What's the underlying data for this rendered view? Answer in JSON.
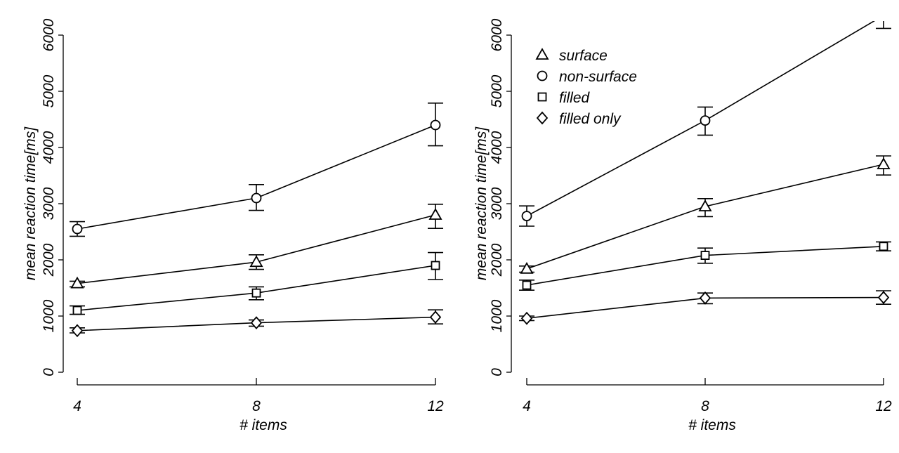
{
  "chart_data": [
    {
      "type": "line",
      "title": "",
      "xlabel": "# items",
      "ylabel": "mean reaction time[ms]",
      "x": [
        4,
        8,
        12
      ],
      "x_ticks": [
        "4",
        "8",
        "12"
      ],
      "y_ticks": [
        "0",
        "1000",
        "2000",
        "3000",
        "4000",
        "5000",
        "6000"
      ],
      "ylim": [
        0,
        6000
      ],
      "legend": "none",
      "series": [
        {
          "name": "non-surface",
          "marker": "circle",
          "values": [
            2550,
            3100,
            4400
          ],
          "err_low": [
            2420,
            2880,
            4030
          ],
          "err_high": [
            2680,
            3340,
            4790
          ]
        },
        {
          "name": "surface",
          "marker": "triangle",
          "values": [
            1580,
            1960,
            2800
          ],
          "err_low": [
            1520,
            1830,
            2560
          ],
          "err_high": [
            1620,
            2090,
            2990
          ]
        },
        {
          "name": "filled",
          "marker": "square",
          "values": [
            1100,
            1410,
            1900
          ],
          "err_low": [
            1030,
            1290,
            1650
          ],
          "err_high": [
            1180,
            1520,
            2130
          ]
        },
        {
          "name": "filled only",
          "marker": "diamond",
          "values": [
            740,
            880,
            980
          ],
          "err_low": [
            700,
            820,
            860
          ],
          "err_high": [
            790,
            930,
            1110
          ]
        }
      ]
    },
    {
      "type": "line",
      "title": "",
      "xlabel": "# items",
      "ylabel": "mean reaction time[ms]",
      "x": [
        4,
        8,
        12
      ],
      "x_ticks": [
        "4",
        "8",
        "12"
      ],
      "y_ticks": [
        "0",
        "1000",
        "2000",
        "3000",
        "4000",
        "5000",
        "6000"
      ],
      "ylim": [
        0,
        6000
      ],
      "legend": "top-left",
      "series": [
        {
          "name": "surface",
          "marker": "triangle",
          "values": [
            1840,
            2950,
            3700
          ],
          "err_low": [
            1780,
            2770,
            3510
          ],
          "err_high": [
            1890,
            3090,
            3850
          ]
        },
        {
          "name": "non-surface",
          "marker": "circle",
          "values": [
            2780,
            4480,
            6350
          ],
          "err_low": [
            2600,
            4220,
            6120
          ],
          "err_high": [
            2960,
            4720,
            6550
          ]
        },
        {
          "name": "filled",
          "marker": "square",
          "values": [
            1550,
            2080,
            2240
          ],
          "err_low": [
            1460,
            1940,
            2160
          ],
          "err_high": [
            1640,
            2210,
            2320
          ]
        },
        {
          "name": "filled only",
          "marker": "diamond",
          "values": [
            960,
            1320,
            1330
          ],
          "err_low": [
            920,
            1220,
            1210
          ],
          "err_high": [
            1000,
            1410,
            1450
          ]
        }
      ]
    }
  ]
}
